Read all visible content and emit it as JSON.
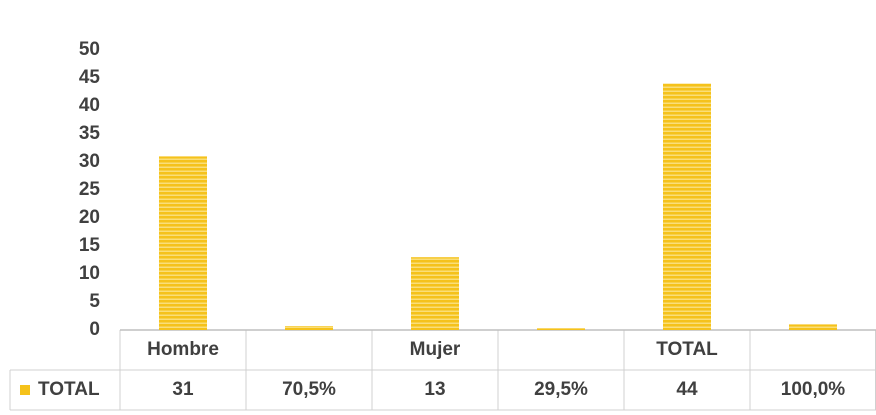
{
  "chart_data": {
    "type": "bar",
    "categories": [
      "Hombre",
      null,
      "Mujer",
      null,
      "TOTAL",
      null
    ],
    "series": [
      {
        "name": "TOTAL",
        "color": "#f5c21b",
        "values": [
          31,
          0.705,
          13,
          0.295,
          44,
          1.0
        ],
        "value_labels": [
          "31",
          "70,5%",
          "13",
          "29,5%",
          "44",
          "100,0%"
        ]
      }
    ],
    "ylim": [
      0,
      50
    ],
    "yticks": [
      0,
      5,
      10,
      15,
      20,
      25,
      30,
      35,
      40,
      45,
      50
    ],
    "grid": false,
    "data_table": true
  }
}
